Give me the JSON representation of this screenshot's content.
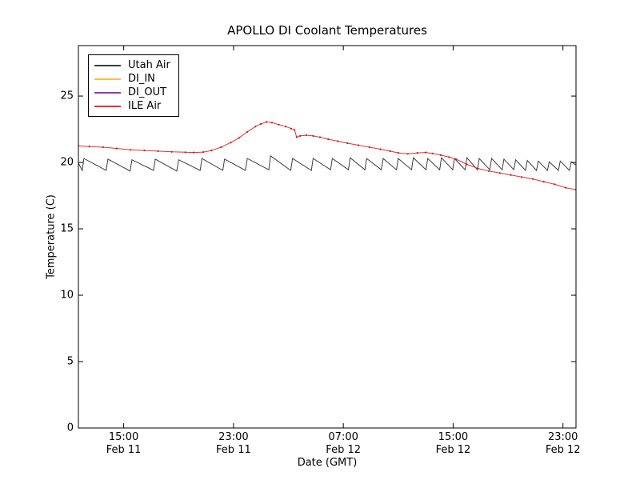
{
  "chart_data": {
    "type": "line",
    "title": "APOLLO DI Coolant Temperatures",
    "xlabel": "Date (GMT)",
    "ylabel": "Temperature (C)",
    "x_unit": "hours since Feb 11 00:00 GMT",
    "xlim": [
      11.7,
      47.95
    ],
    "ylim": [
      0,
      28.8
    ],
    "grid": false,
    "legend_position": "upper left",
    "background_color": "#ffffff",
    "frame_color": "#000000",
    "yticks": [
      0,
      5,
      10,
      15,
      20,
      25
    ],
    "xticks": [
      {
        "t": 15,
        "time": "15:00",
        "date": "Feb 11"
      },
      {
        "t": 23,
        "time": "23:00",
        "date": "Feb 11"
      },
      {
        "t": 31,
        "time": "07:00",
        "date": "Feb 12"
      },
      {
        "t": 39,
        "time": "15:00",
        "date": "Feb 12"
      },
      {
        "t": 47,
        "time": "23:00",
        "date": "Feb 12"
      }
    ],
    "series": [
      {
        "name": "Utah Air",
        "color": "#3c3c3c",
        "linewidth": 1,
        "markers": false,
        "points": [
          [
            11.7,
            19.95
          ],
          [
            11.98,
            19.4
          ],
          [
            12.1,
            20.3
          ],
          [
            13.72,
            19.4
          ],
          [
            13.85,
            20.25
          ],
          [
            15.47,
            19.35
          ],
          [
            15.6,
            20.2
          ],
          [
            17.17,
            19.4
          ],
          [
            17.3,
            20.25
          ],
          [
            18.87,
            19.35
          ],
          [
            19.0,
            20.2
          ],
          [
            20.57,
            19.4
          ],
          [
            20.7,
            20.3
          ],
          [
            22.22,
            19.4
          ],
          [
            22.35,
            20.25
          ],
          [
            23.87,
            19.4
          ],
          [
            24.0,
            20.3
          ],
          [
            25.57,
            19.45
          ],
          [
            25.7,
            20.5
          ],
          [
            27.17,
            19.4
          ],
          [
            27.3,
            20.3
          ],
          [
            28.67,
            19.4
          ],
          [
            28.8,
            20.3
          ],
          [
            30.07,
            19.45
          ],
          [
            30.2,
            20.3
          ],
          [
            31.37,
            19.45
          ],
          [
            31.5,
            20.35
          ],
          [
            32.57,
            19.45
          ],
          [
            32.7,
            20.3
          ],
          [
            33.77,
            19.45
          ],
          [
            33.9,
            20.3
          ],
          [
            34.87,
            19.45
          ],
          [
            35.0,
            20.3
          ],
          [
            35.97,
            19.45
          ],
          [
            36.1,
            20.35
          ],
          [
            37.02,
            19.45
          ],
          [
            37.15,
            20.3
          ],
          [
            38.02,
            19.45
          ],
          [
            38.15,
            20.35
          ],
          [
            38.97,
            19.45
          ],
          [
            39.1,
            20.3
          ],
          [
            39.87,
            19.45
          ],
          [
            40.0,
            20.35
          ],
          [
            40.77,
            19.45
          ],
          [
            40.9,
            20.3
          ],
          [
            41.67,
            19.45
          ],
          [
            41.8,
            20.3
          ],
          [
            42.57,
            19.45
          ],
          [
            42.7,
            20.25
          ],
          [
            43.42,
            19.45
          ],
          [
            43.55,
            20.2
          ],
          [
            44.27,
            19.4
          ],
          [
            44.4,
            20.15
          ],
          [
            45.07,
            19.4
          ],
          [
            45.2,
            20.1
          ],
          [
            45.87,
            19.4
          ],
          [
            46.0,
            20.05
          ],
          [
            46.67,
            19.4
          ],
          [
            46.8,
            20.1
          ],
          [
            47.47,
            19.4
          ],
          [
            47.6,
            20.05
          ],
          [
            47.95,
            19.8
          ]
        ]
      },
      {
        "name": "DI_IN",
        "color": "#ffbb4d",
        "linewidth": 1,
        "markers": false,
        "points": []
      },
      {
        "name": "DI_OUT",
        "color": "#9b3d9b",
        "linewidth": 1,
        "markers": false,
        "points": []
      },
      {
        "name": "ILE Air",
        "color": "#e53030",
        "marker_color": "#c41818",
        "linewidth": 1,
        "markers": true,
        "points": [
          [
            11.7,
            21.25
          ],
          [
            12.5,
            21.2
          ],
          [
            13.5,
            21.15
          ],
          [
            14.5,
            21.05
          ],
          [
            15.5,
            20.95
          ],
          [
            16.5,
            20.9
          ],
          [
            17.5,
            20.85
          ],
          [
            18.5,
            20.8
          ],
          [
            19.5,
            20.77
          ],
          [
            20.1,
            20.75
          ],
          [
            20.8,
            20.78
          ],
          [
            21.4,
            20.9
          ],
          [
            22.1,
            21.15
          ],
          [
            22.8,
            21.5
          ],
          [
            23.4,
            21.85
          ],
          [
            24.0,
            22.3
          ],
          [
            24.6,
            22.7
          ],
          [
            25.0,
            22.9
          ],
          [
            25.4,
            23.05
          ],
          [
            25.8,
            23.0
          ],
          [
            26.3,
            22.85
          ],
          [
            26.8,
            22.7
          ],
          [
            27.2,
            22.55
          ],
          [
            27.45,
            22.45
          ],
          [
            27.6,
            21.9
          ],
          [
            27.85,
            22.0
          ],
          [
            28.3,
            22.05
          ],
          [
            28.8,
            22.0
          ],
          [
            29.3,
            21.9
          ],
          [
            29.9,
            21.75
          ],
          [
            30.6,
            21.6
          ],
          [
            31.3,
            21.45
          ],
          [
            32.1,
            21.3
          ],
          [
            32.9,
            21.15
          ],
          [
            33.7,
            21.0
          ],
          [
            34.4,
            20.85
          ],
          [
            35.0,
            20.72
          ],
          [
            35.7,
            20.65
          ],
          [
            36.4,
            20.72
          ],
          [
            37.0,
            20.75
          ],
          [
            37.5,
            20.68
          ],
          [
            38.1,
            20.55
          ],
          [
            38.7,
            20.4
          ],
          [
            39.2,
            20.25
          ],
          [
            40.0,
            19.85
          ],
          [
            40.8,
            19.55
          ],
          [
            41.6,
            19.35
          ],
          [
            42.4,
            19.2
          ],
          [
            43.2,
            19.05
          ],
          [
            44.0,
            18.9
          ],
          [
            44.8,
            18.75
          ],
          [
            45.6,
            18.55
          ],
          [
            46.4,
            18.35
          ],
          [
            47.2,
            18.1
          ],
          [
            47.95,
            17.95
          ]
        ]
      }
    ]
  }
}
